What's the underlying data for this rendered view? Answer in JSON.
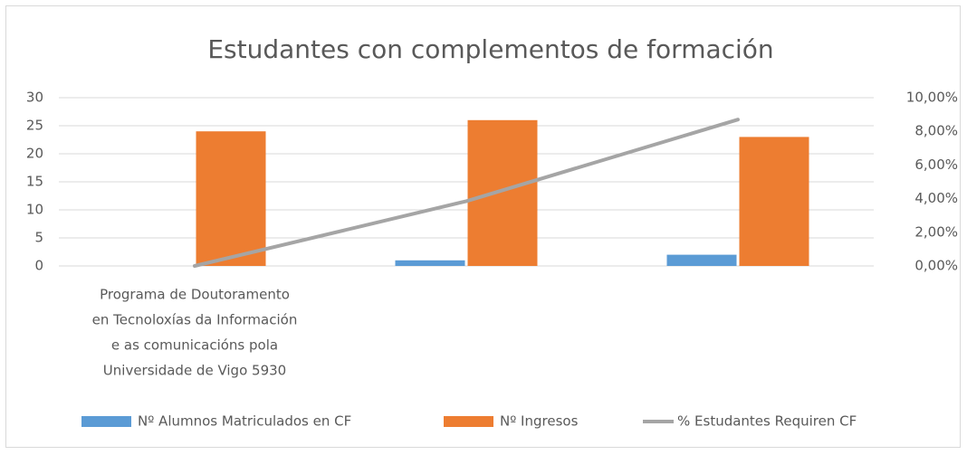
{
  "chart_data": {
    "type": "bar_line",
    "title": "Estudantes con complementos de formación",
    "categories": [
      [
        "Programa de Doutoramento",
        "en Tecnoloxías da Información",
        "e as comunicacións pola",
        "Universidade de Vigo    5930"
      ],
      null,
      null
    ],
    "series": [
      {
        "name": "Nº Alumnos Matriculados en CF",
        "color": "#5b9bd5",
        "kind": "bar",
        "values": [
          0,
          1,
          2
        ]
      },
      {
        "name": "Nº Ingresos",
        "color": "#ed7d31",
        "kind": "bar",
        "values": [
          24,
          26,
          23
        ]
      },
      {
        "name": "% Estudantes Requiren CF",
        "color": "#a5a5a5",
        "kind": "line",
        "axis": "y2",
        "values": [
          0,
          3.85,
          8.7
        ]
      }
    ],
    "ylim": [
      0,
      30
    ],
    "yticks": [
      0,
      5,
      10,
      15,
      20,
      25,
      30
    ],
    "y2lim": [
      0,
      10
    ],
    "y2ticks": [
      {
        "value": 0,
        "label": "0,00%"
      },
      {
        "value": 2,
        "label": "2,00%"
      },
      {
        "value": 4,
        "label": "4,00%"
      },
      {
        "value": 6,
        "label": "6,00%"
      },
      {
        "value": 8,
        "label": "8,00%"
      },
      {
        "value": 10,
        "label": "10,00%"
      }
    ],
    "grid": true,
    "legend": "bottom"
  }
}
